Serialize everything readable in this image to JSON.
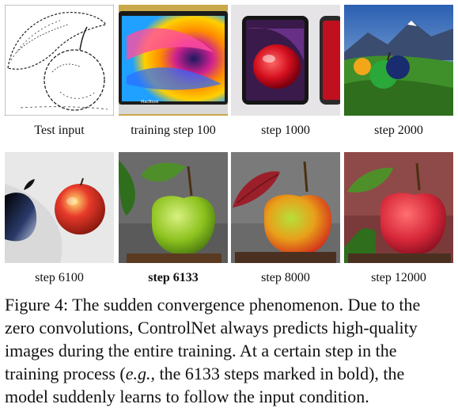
{
  "panels": [
    {
      "caption": "Test input",
      "bold": false
    },
    {
      "caption": "training step 100",
      "bold": false
    },
    {
      "caption": "step 1000",
      "bold": false
    },
    {
      "caption": "step 2000",
      "bold": false
    },
    {
      "caption": "step 6100",
      "bold": false
    },
    {
      "caption": "step 6133",
      "bold": true
    },
    {
      "caption": "step 8000",
      "bold": false
    },
    {
      "caption": "step 12000",
      "bold": false
    }
  ],
  "figure_caption": {
    "line1": "Figure 4: The sudden convergence phenomenon. Due to the",
    "line2": "zero convolutions, ControlNet always predicts high-quality",
    "line3": "images during the entire training.  At a certain step in the",
    "line4a": "training process (",
    "line4_em": "e.g.",
    "line4b": ", the 6133 steps marked in bold), the",
    "line5": "model suddenly learns to follow the input condition."
  }
}
